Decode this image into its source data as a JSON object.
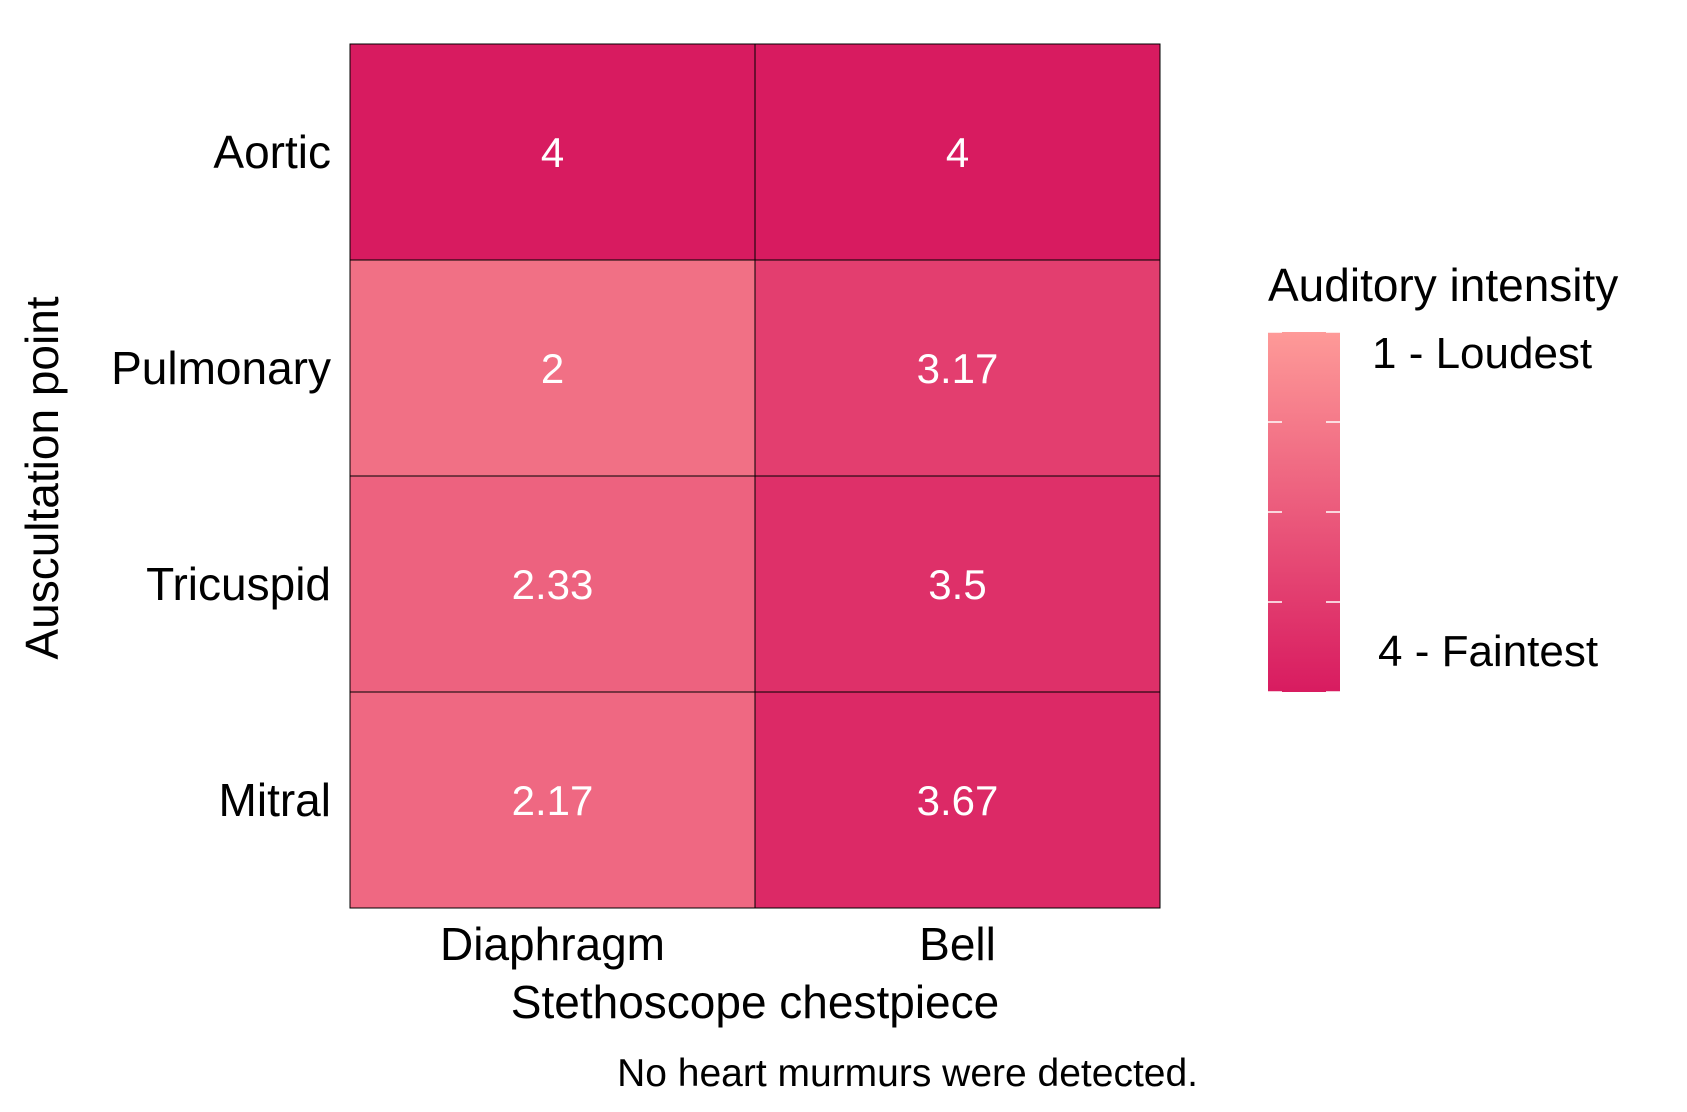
{
  "chart_data": {
    "type": "heatmap",
    "x_categories": [
      "Diaphragm",
      "Bell"
    ],
    "y_categories": [
      "Aortic",
      "Pulmonary",
      "Tricuspid",
      "Mitral"
    ],
    "values": [
      [
        4,
        4
      ],
      [
        2,
        3.17
      ],
      [
        2.33,
        3.5
      ],
      [
        2.17,
        3.67
      ]
    ],
    "cell_labels": [
      [
        "4",
        "4"
      ],
      [
        "2",
        "3.17"
      ],
      [
        "2.33",
        "3.5"
      ],
      [
        "2.17",
        "3.67"
      ]
    ],
    "xlabel": "Stethoscope chestpiece",
    "ylabel": "Auscultation point",
    "caption": "No heart murmurs were detected.",
    "value_range": [
      1,
      4
    ],
    "color_low": "#fe9a98",
    "color_high": "#d81b60",
    "legend": {
      "title": "Auditory intensity",
      "placement": "right",
      "labels": [
        {
          "value": 1,
          "text": "1 - Loudest"
        },
        {
          "value": 4,
          "text": "4 - Faintest"
        }
      ]
    }
  }
}
